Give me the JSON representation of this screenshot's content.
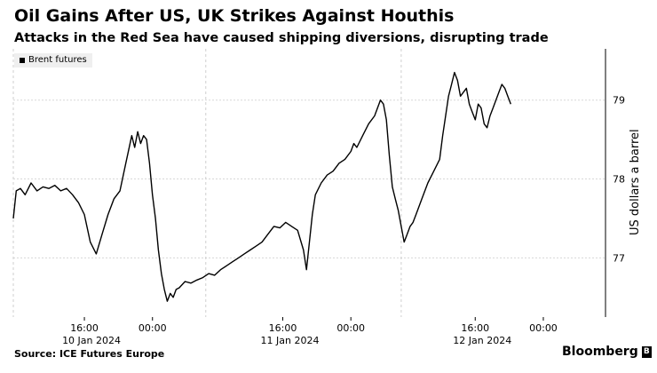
{
  "header": {
    "title": "Oil Gains After US, UK Strikes Against Houthis",
    "subtitle": "Attacks in the Red Sea have caused shipping diversions, disrupting trade"
  },
  "footer": {
    "source": "Source: ICE Futures Europe",
    "brand": "Bloomberg",
    "brand_mark": "B"
  },
  "chart_data": {
    "type": "line",
    "ylabel": "US dollars a barrel",
    "ylim": [
      76.25,
      79.65
    ],
    "yticks": [
      77,
      78,
      79
    ],
    "xlim": [
      0,
      1
    ],
    "grid": true,
    "legend_position": "top-left",
    "x_tick_labels": [
      "16:00",
      "00:00",
      "16:00",
      "00:00",
      "16:00",
      "00:00"
    ],
    "x_day_labels": [
      "10 Jan 2024",
      "11 Jan 2024",
      "12 Jan 2024"
    ],
    "series": [
      {
        "name": "Brent futures",
        "color": "#000000",
        "points": [
          [
            0.0,
            77.5
          ],
          [
            0.005,
            77.85
          ],
          [
            0.012,
            77.88
          ],
          [
            0.02,
            77.8
          ],
          [
            0.03,
            77.95
          ],
          [
            0.04,
            77.85
          ],
          [
            0.05,
            77.9
          ],
          [
            0.06,
            77.88
          ],
          [
            0.07,
            77.92
          ],
          [
            0.08,
            77.85
          ],
          [
            0.09,
            77.88
          ],
          [
            0.1,
            77.8
          ],
          [
            0.11,
            77.7
          ],
          [
            0.12,
            77.55
          ],
          [
            0.13,
            77.2
          ],
          [
            0.14,
            77.05
          ],
          [
            0.15,
            77.3
          ],
          [
            0.16,
            77.55
          ],
          [
            0.17,
            77.75
          ],
          [
            0.18,
            77.85
          ],
          [
            0.19,
            78.2
          ],
          [
            0.2,
            78.55
          ],
          [
            0.205,
            78.4
          ],
          [
            0.21,
            78.6
          ],
          [
            0.215,
            78.45
          ],
          [
            0.22,
            78.55
          ],
          [
            0.225,
            78.5
          ],
          [
            0.23,
            78.2
          ],
          [
            0.235,
            77.8
          ],
          [
            0.24,
            77.5
          ],
          [
            0.245,
            77.1
          ],
          [
            0.25,
            76.8
          ],
          [
            0.255,
            76.6
          ],
          [
            0.26,
            76.45
          ],
          [
            0.265,
            76.55
          ],
          [
            0.27,
            76.5
          ],
          [
            0.275,
            76.6
          ],
          [
            0.28,
            76.62
          ],
          [
            0.29,
            76.7
          ],
          [
            0.3,
            76.68
          ],
          [
            0.31,
            76.72
          ],
          [
            0.32,
            76.75
          ],
          [
            0.33,
            76.8
          ],
          [
            0.34,
            76.78
          ],
          [
            0.35,
            76.85
          ],
          [
            0.36,
            76.9
          ],
          [
            0.37,
            76.95
          ],
          [
            0.38,
            77.0
          ],
          [
            0.39,
            77.05
          ],
          [
            0.4,
            77.1
          ],
          [
            0.41,
            77.15
          ],
          [
            0.42,
            77.2
          ],
          [
            0.43,
            77.3
          ],
          [
            0.44,
            77.4
          ],
          [
            0.45,
            77.38
          ],
          [
            0.46,
            77.45
          ],
          [
            0.47,
            77.4
          ],
          [
            0.48,
            77.35
          ],
          [
            0.49,
            77.1
          ],
          [
            0.495,
            76.85
          ],
          [
            0.5,
            77.2
          ],
          [
            0.505,
            77.55
          ],
          [
            0.51,
            77.8
          ],
          [
            0.52,
            77.95
          ],
          [
            0.53,
            78.05
          ],
          [
            0.54,
            78.1
          ],
          [
            0.55,
            78.2
          ],
          [
            0.56,
            78.25
          ],
          [
            0.57,
            78.35
          ],
          [
            0.575,
            78.45
          ],
          [
            0.58,
            78.4
          ],
          [
            0.59,
            78.55
          ],
          [
            0.6,
            78.7
          ],
          [
            0.61,
            78.8
          ],
          [
            0.615,
            78.9
          ],
          [
            0.62,
            79.0
          ],
          [
            0.625,
            78.95
          ],
          [
            0.63,
            78.75
          ],
          [
            0.635,
            78.3
          ],
          [
            0.64,
            77.9
          ],
          [
            0.645,
            77.75
          ],
          [
            0.65,
            77.6
          ],
          [
            0.655,
            77.4
          ],
          [
            0.66,
            77.2
          ],
          [
            0.665,
            77.3
          ],
          [
            0.67,
            77.4
          ],
          [
            0.675,
            77.45
          ],
          [
            0.68,
            77.55
          ],
          [
            0.69,
            77.75
          ],
          [
            0.7,
            77.95
          ],
          [
            0.71,
            78.1
          ],
          [
            0.72,
            78.25
          ],
          [
            0.725,
            78.55
          ],
          [
            0.73,
            78.8
          ],
          [
            0.735,
            79.05
          ],
          [
            0.74,
            79.2
          ],
          [
            0.745,
            79.35
          ],
          [
            0.75,
            79.25
          ],
          [
            0.755,
            79.05
          ],
          [
            0.76,
            79.1
          ],
          [
            0.765,
            79.15
          ],
          [
            0.77,
            78.95
          ],
          [
            0.775,
            78.85
          ],
          [
            0.78,
            78.75
          ],
          [
            0.785,
            78.95
          ],
          [
            0.79,
            78.9
          ],
          [
            0.795,
            78.7
          ],
          [
            0.8,
            78.65
          ],
          [
            0.805,
            78.8
          ],
          [
            0.81,
            78.9
          ],
          [
            0.815,
            79.0
          ],
          [
            0.82,
            79.1
          ],
          [
            0.825,
            79.2
          ],
          [
            0.83,
            79.15
          ],
          [
            0.835,
            79.05
          ],
          [
            0.84,
            78.95
          ]
        ]
      }
    ]
  }
}
